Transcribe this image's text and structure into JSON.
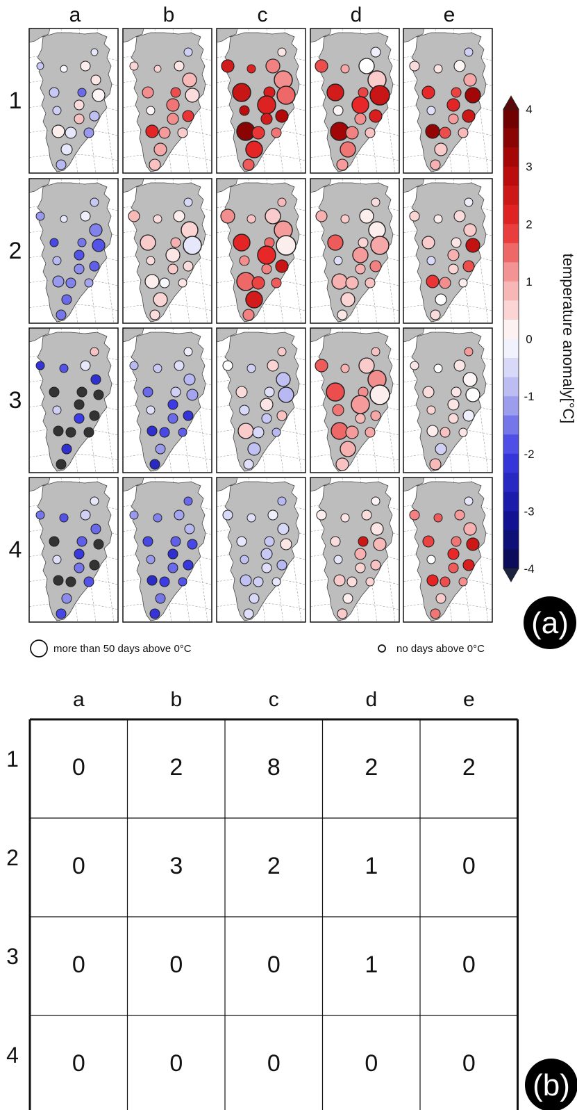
{
  "panel_a": {
    "label": "(a)",
    "column_labels": [
      "a",
      "b",
      "c",
      "d",
      "e"
    ],
    "row_labels": [
      "1",
      "2",
      "3",
      "4"
    ],
    "colorbar": {
      "title": "temperature anomaly[°C]",
      "min": -4,
      "max": 4,
      "ticks": [
        "4",
        "3",
        "2",
        "1",
        "0",
        "-1",
        "-2",
        "-3",
        "-4"
      ],
      "colors": {
        "cold_extreme": "#0a0a5a",
        "cold": "#2a2ad8",
        "neutral": "#ffffff",
        "warm": "#e41a1c",
        "warm_extreme": "#5a0a0a"
      }
    },
    "legend": {
      "large_circle_label": "more than 50 days above 0°C",
      "small_circle_label": "no days above 0°C"
    },
    "land_color": "#bdbdbd",
    "out_of_range_color": "#333333"
  },
  "panel_b": {
    "label": "(b)",
    "column_labels": [
      "a",
      "b",
      "c",
      "d",
      "e"
    ],
    "row_labels": [
      "1",
      "2",
      "3",
      "4"
    ],
    "table": [
      [
        "0",
        "2",
        "8",
        "2",
        "2"
      ],
      [
        "0",
        "3",
        "2",
        "1",
        "0"
      ],
      [
        "0",
        "0",
        "0",
        "1",
        "0"
      ],
      [
        "0",
        "0",
        "0",
        "0",
        "0"
      ]
    ]
  },
  "chart_data": [
    {
      "type": "scatter",
      "title": "",
      "xlabel": "",
      "ylabel": "",
      "description_units": "station temperature anomaly (°C) shown by color; days above 0°C shown by circle size",
      "colorbar_label": "temperature anomaly[°C]",
      "color_range": [
        -4,
        4
      ],
      "size_legend": [
        "more than 50 days above 0°C",
        "no days above 0°C"
      ],
      "grid_columns": [
        "a",
        "b",
        "c",
        "d",
        "e"
      ],
      "grid_rows": [
        "1",
        "2",
        "3",
        "4"
      ],
      "station_count_per_map": 17,
      "anomaly": [
        [
          [
            -0.7,
            -0.1,
            0.2,
            -0.3,
            -0.7,
            -1.6,
            0.3,
            -0.6,
            0.4,
            -0.8,
            0.7,
            0.2,
            -0.3,
            -1.2,
            -0.3,
            -0.9,
            0.1
          ],
          [
            0.5,
            0.5,
            0.3,
            -0.6,
            1.2,
            1.7,
            0.8,
            0.1,
            1.4,
            1.9,
            1.2,
            2.1,
            1.1,
            0.6,
            1.0,
            0.7,
            0.4
          ],
          [
            2.4,
            2.2,
            1.3,
            0.3,
            2.6,
            2.3,
            1.2,
            2.8,
            2.2,
            3.0,
            2.4,
            3.5,
            1.9,
            1.4,
            2.1,
            1.6,
            1.5
          ],
          [
            1.7,
            1.0,
            0.0,
            -0.2,
            2.4,
            1.8,
            0.6,
            0.1,
            2.0,
            2.3,
            1.2,
            3.2,
            1.3,
            0.7,
            1.4,
            1.1,
            2.6
          ],
          [
            0.4,
            0.3,
            0.1,
            -0.6,
            2.0,
            1.8,
            1.0,
            -0.4,
            2.1,
            2.5,
            1.1,
            3.4,
            1.7,
            0.8,
            0.6,
            0.9,
            3.2
          ]
        ],
        [
          [
            -1.2,
            -0.3,
            -0.2,
            -0.7,
            -1.9,
            -1.5,
            -1.4,
            -0.9,
            -1.8,
            -1.7,
            -1.3,
            -1.2,
            -1.4,
            -1.1,
            -1.6,
            -1.5,
            -1.8
          ],
          [
            0.8,
            0.4,
            0.2,
            -0.5,
            0.6,
            0.9,
            0.5,
            0.4,
            0.3,
            0.4,
            0.6,
            0.2,
            -0.1,
            0.3,
            0.5,
            0.4,
            -0.3
          ],
          [
            1.2,
            0.7,
            0.6,
            0.8,
            2.1,
            1.5,
            1.1,
            1.2,
            2.0,
            2.6,
            1.3,
            1.5,
            1.8,
            1.6,
            2.4,
            1.3,
            0.2
          ],
          [
            0.9,
            0.6,
            0.2,
            0.4,
            1.6,
            0.5,
            0.2,
            -0.4,
            1.1,
            1.3,
            0.9,
            0.9,
            0.8,
            0.7,
            0.5,
            0.3,
            1.0
          ],
          [
            0.5,
            0.2,
            0.4,
            -0.2,
            0.6,
            0.3,
            0.6,
            -0.5,
            0.9,
            1.7,
            0.5,
            1.9,
            1.2,
            0.2,
            0.0,
            0.4,
            2.7
          ]
        ],
        [
          [
            -2.2,
            -1.8,
            -0.3,
            0.7,
            -5.0,
            -5.0,
            -2.3,
            -0.6,
            -5.0,
            -5.0,
            -2.0,
            -5.0,
            -5.0,
            -5.0,
            -2.3,
            -5.0,
            -5.0
          ],
          [
            -0.9,
            -0.7,
            -0.4,
            -0.2,
            -1.6,
            -0.6,
            -0.9,
            -0.4,
            -2.0,
            -2.2,
            -1.6,
            -2.3,
            -1.9,
            -1.7,
            -1.2,
            -2.5,
            -1.1
          ],
          [
            0.0,
            -0.6,
            0.5,
            0.6,
            0.4,
            -0.4,
            -0.8,
            -0.5,
            0.3,
            0.7,
            -0.7,
            0.6,
            -0.5,
            -0.9,
            -0.8,
            -0.4,
            -0.9
          ],
          [
            1.6,
            0.9,
            0.6,
            0.7,
            1.7,
            1.2,
            1.2,
            1.4,
            1.1,
            1.0,
            0.8,
            1.5,
            1.1,
            1.0,
            0.9,
            0.7,
            0.2
          ],
          [
            0.3,
            0.0,
            0.3,
            1.1,
            0.4,
            0.3,
            0.1,
            0.5,
            0.3,
            -0.2,
            0.4,
            0.2,
            0.7,
            0.3,
            -0.6,
            0.8,
            0.0
          ]
        ],
        [
          [
            -1.5,
            -1.8,
            -0.6,
            -0.3,
            -5.0,
            -1.7,
            -1.6,
            -0.4,
            -2.1,
            -5.0,
            -1.5,
            -5.0,
            -5.0,
            -1.8,
            -1.3,
            -1.9,
            -5.0
          ],
          [
            -1.2,
            -1.4,
            -1.1,
            -1.6,
            -1.9,
            -1.7,
            -0.9,
            -1.2,
            -2.3,
            -2.1,
            -1.6,
            -2.4,
            -2.0,
            -1.8,
            -1.5,
            -2.2,
            -1.9
          ],
          [
            -0.5,
            -0.4,
            -0.2,
            -0.9,
            -0.3,
            -0.7,
            -0.5,
            -0.8,
            -0.7,
            -0.9,
            -0.4,
            -0.8,
            -0.6,
            -0.3,
            -0.5,
            -0.4,
            0.3
          ],
          [
            0.2,
            0.3,
            0.4,
            0.1,
            0.4,
            2.5,
            0.3,
            -0.3,
            0.9,
            0.7,
            0.5,
            0.6,
            0.4,
            0.5,
            0.2,
            0.6,
            0.8
          ],
          [
            1.3,
            1.6,
            1.1,
            -0.3,
            1.8,
            1.4,
            0.9,
            0.0,
            2.0,
            2.3,
            1.6,
            2.1,
            1.7,
            1.2,
            0.6,
            1.4,
            2.5
          ]
        ]
      ],
      "days_above_zero_level": [
        [
          [
            0.1,
            0.1,
            0.3,
            0.1,
            0.3,
            0.2,
            0.3,
            0.2,
            0.3,
            0.3,
            0.3,
            0.5,
            0.4,
            0.3,
            0.4,
            0.3,
            0.5
          ],
          [
            0.2,
            0.1,
            0.3,
            0.2,
            0.4,
            0.3,
            0.6,
            0.2,
            0.5,
            0.4,
            0.4,
            0.5,
            0.4,
            0.3,
            0.5,
            0.4,
            0.6
          ],
          [
            0.5,
            0.2,
            0.6,
            0.2,
            0.9,
            0.4,
            0.9,
            0.3,
            0.9,
            0.5,
            0.4,
            0.9,
            0.5,
            0.3,
            0.8,
            0.4,
            0.9
          ],
          [
            0.5,
            0.2,
            0.7,
            0.3,
            0.8,
            0.3,
            0.9,
            0.3,
            0.8,
            0.5,
            0.4,
            0.9,
            0.5,
            0.3,
            0.7,
            0.4,
            1.0
          ],
          [
            0.3,
            0.2,
            0.4,
            0.2,
            0.5,
            0.3,
            0.5,
            0.2,
            0.5,
            0.5,
            0.3,
            0.6,
            0.4,
            0.3,
            0.5,
            0.3,
            0.7
          ]
        ],
        [
          [
            0.2,
            0.1,
            0.3,
            0.2,
            0.2,
            0.2,
            0.5,
            0.2,
            0.3,
            0.3,
            0.3,
            0.4,
            0.3,
            0.2,
            0.3,
            0.3,
            0.5
          ],
          [
            0.4,
            0.2,
            0.4,
            0.2,
            0.7,
            0.3,
            0.8,
            0.2,
            0.6,
            0.3,
            0.3,
            0.6,
            0.3,
            0.2,
            0.6,
            0.3,
            0.9
          ],
          [
            0.6,
            0.2,
            0.7,
            0.2,
            0.8,
            0.3,
            0.9,
            0.3,
            0.9,
            0.5,
            0.3,
            0.9,
            0.5,
            0.3,
            0.8,
            0.4,
            1.0
          ],
          [
            0.4,
            0.2,
            0.6,
            0.2,
            0.7,
            0.3,
            0.8,
            0.2,
            0.7,
            0.4,
            0.3,
            0.7,
            0.5,
            0.3,
            0.6,
            0.3,
            0.9
          ],
          [
            0.3,
            0.2,
            0.4,
            0.2,
            0.5,
            0.3,
            0.5,
            0.2,
            0.4,
            0.4,
            0.3,
            0.5,
            0.4,
            0.2,
            0.4,
            0.3,
            0.6
          ]
        ],
        [
          [
            0.2,
            0.2,
            0.3,
            0.2,
            0.3,
            0.3,
            0.3,
            0.2,
            0.3,
            0.3,
            0.3,
            0.3,
            0.3,
            0.3,
            0.3,
            0.3,
            0.3
          ],
          [
            0.2,
            0.2,
            0.3,
            0.2,
            0.3,
            0.3,
            0.4,
            0.2,
            0.3,
            0.3,
            0.3,
            0.3,
            0.3,
            0.2,
            0.3,
            0.3,
            0.4
          ],
          [
            0.3,
            0.2,
            0.4,
            0.2,
            0.4,
            0.3,
            0.6,
            0.3,
            0.5,
            0.3,
            0.3,
            0.7,
            0.4,
            0.2,
            0.5,
            0.3,
            0.7
          ],
          [
            0.5,
            0.2,
            0.7,
            0.2,
            0.9,
            0.3,
            0.9,
            0.4,
            0.9,
            0.3,
            0.3,
            0.8,
            0.5,
            0.3,
            0.7,
            0.5,
            1.0
          ],
          [
            0.2,
            0.2,
            0.4,
            0.2,
            0.4,
            0.3,
            0.6,
            0.2,
            0.4,
            0.4,
            0.3,
            0.4,
            0.3,
            0.2,
            0.4,
            0.4,
            0.6
          ]
        ],
        [
          [
            0.2,
            0.2,
            0.3,
            0.2,
            0.3,
            0.3,
            0.3,
            0.2,
            0.3,
            0.3,
            0.3,
            0.3,
            0.3,
            0.3,
            0.3,
            0.3,
            0.3
          ],
          [
            0.2,
            0.2,
            0.3,
            0.2,
            0.3,
            0.3,
            0.3,
            0.2,
            0.3,
            0.3,
            0.3,
            0.3,
            0.3,
            0.2,
            0.3,
            0.3,
            0.3
          ],
          [
            0.3,
            0.2,
            0.3,
            0.2,
            0.3,
            0.3,
            0.4,
            0.2,
            0.4,
            0.3,
            0.3,
            0.4,
            0.3,
            0.2,
            0.3,
            0.3,
            0.4
          ],
          [
            0.3,
            0.2,
            0.3,
            0.2,
            0.3,
            0.3,
            0.5,
            0.2,
            0.4,
            0.3,
            0.3,
            0.4,
            0.3,
            0.2,
            0.3,
            0.3,
            0.5
          ],
          [
            0.3,
            0.2,
            0.3,
            0.2,
            0.4,
            0.3,
            0.5,
            0.2,
            0.4,
            0.4,
            0.3,
            0.4,
            0.3,
            0.2,
            0.3,
            0.3,
            0.5
          ]
        ]
      ]
    },
    {
      "type": "table",
      "title": "",
      "columns": [
        "a",
        "b",
        "c",
        "d",
        "e"
      ],
      "rows": [
        "1",
        "2",
        "3",
        "4"
      ],
      "values": [
        [
          0,
          2,
          8,
          2,
          2
        ],
        [
          0,
          3,
          2,
          1,
          0
        ],
        [
          0,
          0,
          0,
          1,
          0
        ],
        [
          0,
          0,
          0,
          0,
          0
        ]
      ]
    }
  ]
}
